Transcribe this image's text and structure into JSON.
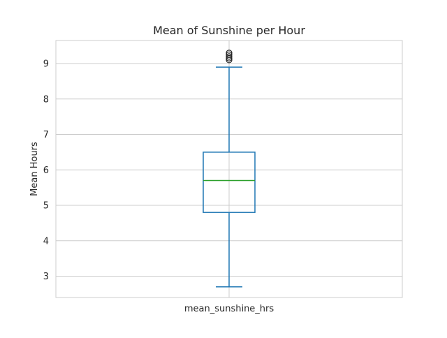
{
  "chart_data": {
    "type": "box",
    "title": "Mean of Sunshine per Hour",
    "xlabel": "",
    "ylabel": "Mean Hours",
    "categories": [
      "mean_sunshine_hrs"
    ],
    "ylim": [
      2.4,
      9.65
    ],
    "yticks": [
      3,
      4,
      5,
      6,
      7,
      8,
      9
    ],
    "grid": true,
    "series": [
      {
        "category": "mean_sunshine_hrs",
        "whisker_low": 2.7,
        "q1": 4.8,
        "median": 5.7,
        "q3": 6.5,
        "whisker_high": 8.9,
        "outliers": [
          9.1,
          9.15,
          9.2,
          9.25,
          9.3
        ]
      }
    ],
    "colors": {
      "box": "#1f77b4",
      "median": "#2ca02c",
      "grid": "#cccccc",
      "spine": "#cccccc",
      "text": "#262626"
    }
  }
}
